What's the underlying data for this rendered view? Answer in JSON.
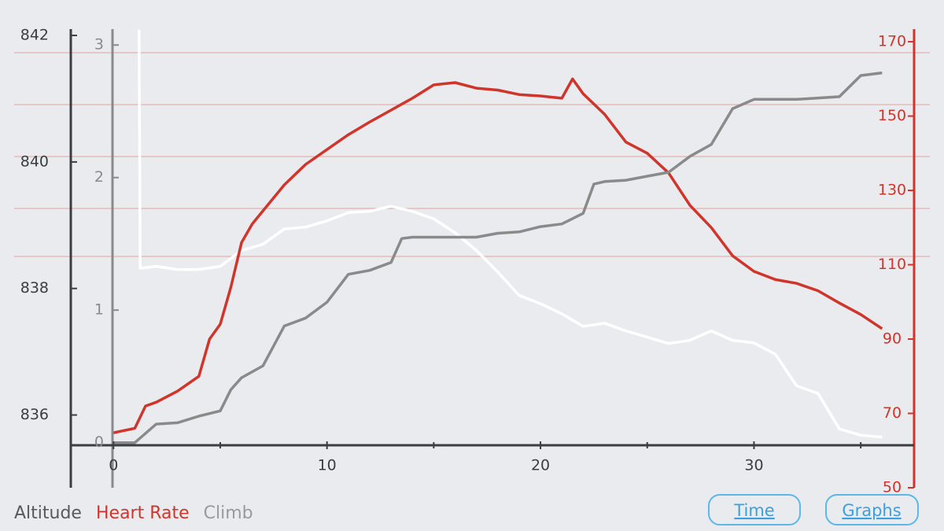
{
  "chart_data": {
    "type": "line",
    "xlim": [
      -2,
      37.5
    ],
    "xticks": [
      0,
      10,
      20,
      30
    ],
    "xminor": [
      5,
      15,
      25,
      35
    ],
    "ylim": [
      834.85,
      842.1
    ],
    "yticks": [
      836,
      838,
      840,
      842
    ],
    "y2lim": [
      50,
      173.4
    ],
    "y2ticks": [
      50,
      70,
      90,
      110,
      130,
      150,
      170
    ],
    "y3lim": [
      -0.34,
      3.12
    ],
    "y3ticks": [
      0,
      1,
      2,
      3
    ],
    "series": [
      {
        "name": "Altitude",
        "color": "#ffffff",
        "axis": "y",
        "x": [
          1.2,
          1.25,
          2,
          3,
          4,
          5,
          6,
          7,
          8,
          9,
          10,
          11,
          12,
          13,
          14,
          15,
          16,
          17,
          18,
          19,
          20,
          21,
          22,
          23,
          24,
          25,
          26,
          27,
          28,
          29,
          30,
          31,
          32,
          33,
          34,
          35,
          36
        ],
        "values": [
          842.09,
          838.32,
          838.35,
          838.3,
          838.3,
          838.35,
          838.6,
          838.7,
          838.94,
          838.97,
          839.07,
          839.2,
          839.22,
          839.3,
          839.22,
          839.1,
          838.88,
          838.6,
          838.26,
          837.89,
          837.76,
          837.6,
          837.4,
          837.45,
          837.33,
          837.23,
          837.13,
          837.18,
          837.33,
          837.18,
          837.14,
          836.96,
          836.46,
          836.34,
          835.78,
          835.68,
          835.65
        ]
      },
      {
        "name": "Heart Rate",
        "color": "#d0352b",
        "axis": "y2",
        "x": [
          0,
          1,
          1.5,
          2,
          3,
          4,
          4.5,
          5,
          5.5,
          6,
          6.5,
          7,
          8,
          9,
          10,
          11,
          12,
          13,
          14,
          15,
          16,
          17,
          18,
          19,
          20,
          21,
          21.5,
          22,
          23,
          24,
          25,
          26,
          27,
          28,
          29,
          30,
          31,
          32,
          33,
          34,
          35,
          36
        ],
        "values": [
          64.8,
          66,
          72,
          73,
          76,
          80,
          90,
          94,
          104,
          116,
          121,
          124.5,
          131.5,
          137,
          141,
          145,
          148.4,
          151.6,
          154.8,
          158.4,
          159,
          157.5,
          157,
          155.8,
          155.4,
          154.8,
          160,
          156,
          150.5,
          143,
          140,
          134.7,
          126,
          120,
          112.4,
          108.2,
          106,
          105,
          103,
          99.7,
          96.6,
          92.8
        ]
      },
      {
        "name": "Climb",
        "color": "#8a8a8a",
        "axis": "y3",
        "x": [
          0,
          1,
          2,
          3,
          4,
          5,
          5.5,
          6,
          7,
          8,
          9,
          10,
          11,
          12,
          13,
          13.5,
          14,
          15,
          16,
          17,
          18,
          19,
          20,
          21,
          22,
          22.5,
          23,
          24,
          25,
          26,
          27,
          28,
          29,
          30,
          31,
          32,
          33,
          34,
          35,
          36
        ],
        "values": [
          0,
          0,
          0.14,
          0.15,
          0.2,
          0.24,
          0.4,
          0.49,
          0.58,
          0.88,
          0.94,
          1.06,
          1.27,
          1.3,
          1.36,
          1.54,
          1.55,
          1.55,
          1.55,
          1.55,
          1.58,
          1.59,
          1.63,
          1.65,
          1.73,
          1.95,
          1.97,
          1.98,
          2.01,
          2.04,
          2.16,
          2.25,
          2.52,
          2.59,
          2.59,
          2.59,
          2.6,
          2.61,
          2.77,
          2.79
        ]
      }
    ],
    "buttons": [
      "Time",
      "Graphs"
    ]
  }
}
